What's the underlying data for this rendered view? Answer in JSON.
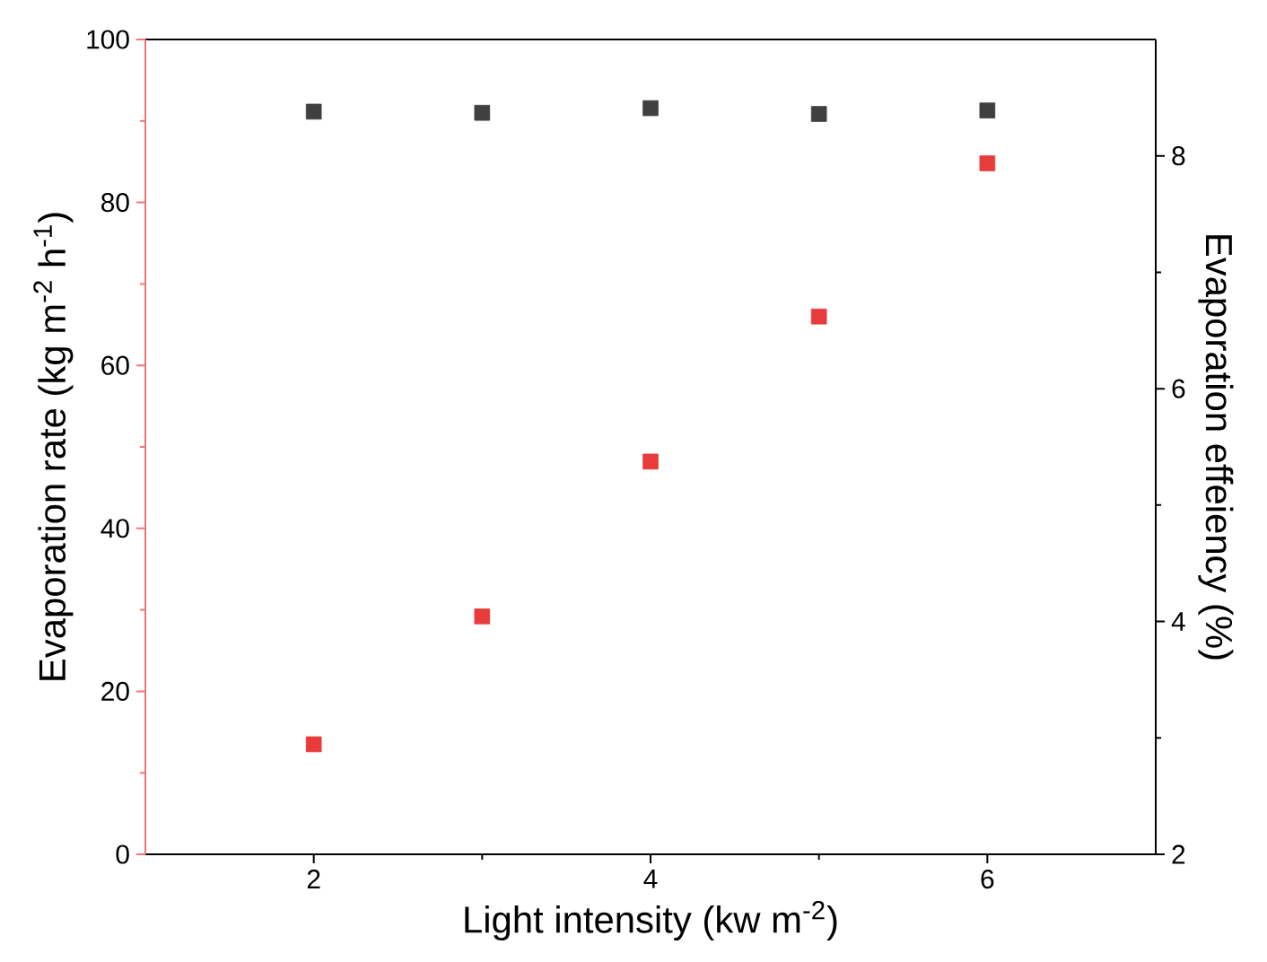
{
  "chart_data": {
    "type": "scatter",
    "xlabel": "Light intensity (kw m$^{-2}$)",
    "ylabel": "Evaporation rate (kg m$^{-2}$ h$^{-1}$)",
    "y2label": "Evaporation effeiency (%)",
    "x": [
      2,
      3,
      4,
      5,
      6
    ],
    "series": [
      {
        "color": "#e83c3c",
        "values": [
          13.5,
          29.2,
          48.2,
          66,
          84.8
        ]
      },
      {
        "color": "#404040",
        "axis": "y2",
        "values": [
          8.38,
          8.37,
          8.41,
          8.36,
          8.39
        ]
      }
    ],
    "xlim": [
      1,
      7
    ],
    "xticks": [
      2,
      4,
      6
    ],
    "ylim": [
      0,
      100
    ],
    "yticks": [
      0,
      20,
      40,
      60,
      80,
      100
    ],
    "y2lim": [
      2,
      9
    ],
    "y2ticks": [
      2,
      4,
      6,
      8
    ],
    "marker": "square"
  }
}
